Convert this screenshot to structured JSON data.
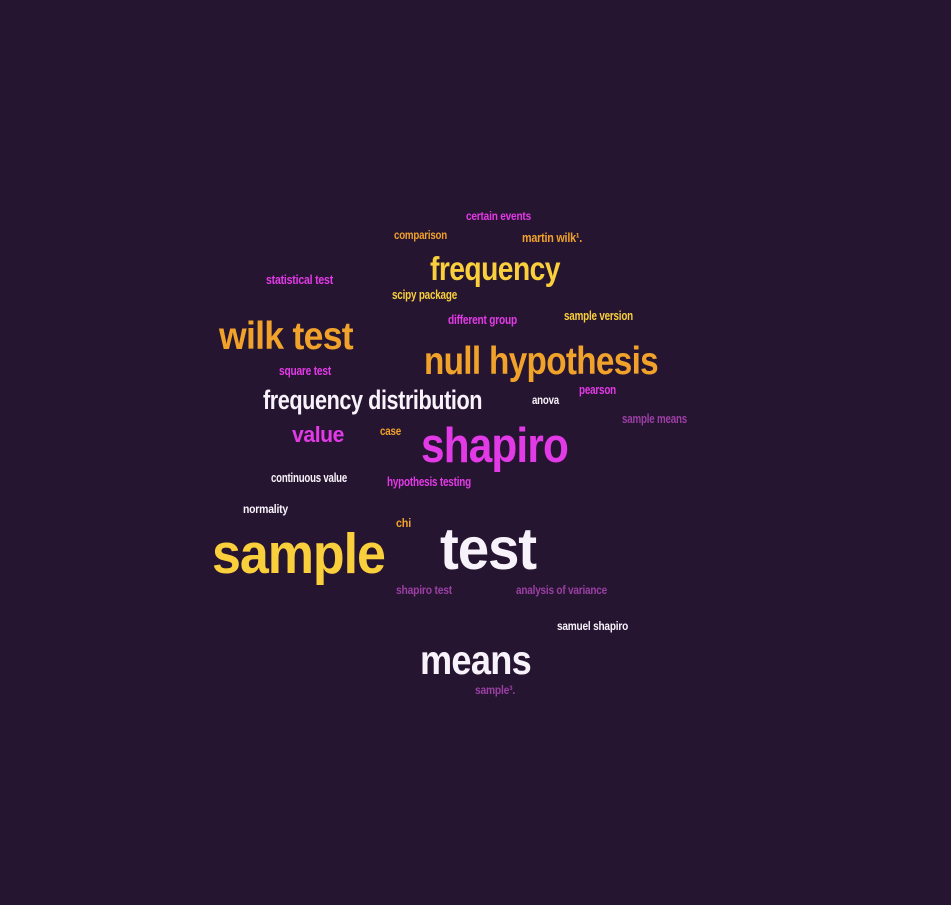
{
  "colors": {
    "background": "#261530",
    "yellow": "#f9cf3c",
    "orange": "#f0a22a",
    "magenta": "#e23ae6",
    "white": "#f8f2fb",
    "muted_magenta": "#9a3fa3"
  },
  "words": [
    {
      "text": "sample",
      "color": "#f9cf3c"
    },
    {
      "text": "test",
      "color": "#f8f2fb"
    },
    {
      "text": "shapiro",
      "color": "#e23ae6"
    },
    {
      "text": "null hypothesis",
      "color": "#f0a22a"
    },
    {
      "text": "means",
      "color": "#f8f2fb"
    },
    {
      "text": "wilk test",
      "color": "#f0a22a"
    },
    {
      "text": "frequency",
      "color": "#f9cf3c"
    },
    {
      "text": "frequency distribution",
      "color": "#f8f2fb"
    },
    {
      "text": "value",
      "color": "#e23ae6"
    },
    {
      "text": "certain events",
      "color": "#e23ae6"
    },
    {
      "text": "comparison",
      "color": "#f0a22a"
    },
    {
      "text": "martin wilk¹.",
      "color": "#f0a22a"
    },
    {
      "text": "statistical test",
      "color": "#e23ae6"
    },
    {
      "text": "scipy package",
      "color": "#f9cf3c"
    },
    {
      "text": "different group",
      "color": "#e23ae6"
    },
    {
      "text": "sample version",
      "color": "#f9cf3c"
    },
    {
      "text": "square test",
      "color": "#e23ae6"
    },
    {
      "text": "anova",
      "color": "#f8f2fb"
    },
    {
      "text": "pearson",
      "color": "#e23ae6"
    },
    {
      "text": "sample means",
      "color": "#9a3fa3"
    },
    {
      "text": "case",
      "color": "#f0a22a"
    },
    {
      "text": "continuous value",
      "color": "#f8f2fb"
    },
    {
      "text": "hypothesis testing",
      "color": "#e23ae6"
    },
    {
      "text": "normality",
      "color": "#f8f2fb"
    },
    {
      "text": "chi",
      "color": "#f0a22a"
    },
    {
      "text": "shapiro test",
      "color": "#9a3fa3"
    },
    {
      "text": "analysis of variance",
      "color": "#9a3fa3"
    },
    {
      "text": "samuel shapiro",
      "color": "#f8f2fb"
    },
    {
      "text": "sample³.",
      "color": "#9a3fa3"
    }
  ]
}
